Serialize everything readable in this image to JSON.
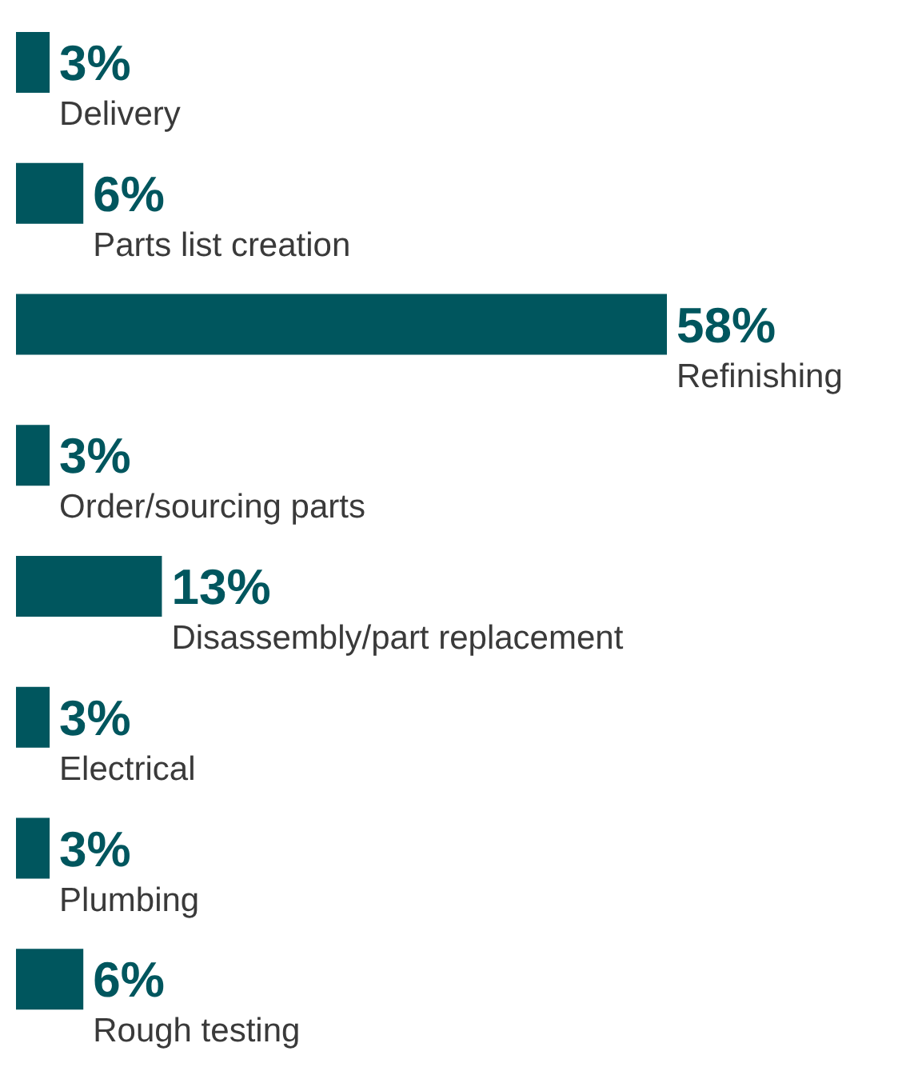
{
  "chart_data": {
    "type": "bar",
    "orientation": "horizontal",
    "categories": [
      "Delivery",
      "Parts list creation",
      "Refinishing",
      "Order/sourcing parts",
      "Disassembly/part replacement",
      "Electrical",
      "Plumbing",
      "Rough testing"
    ],
    "values": [
      3,
      6,
      58,
      3,
      13,
      3,
      3,
      6
    ],
    "value_labels": [
      "3%",
      "6%",
      "58%",
      "3%",
      "13%",
      "3%",
      "3%",
      "6%"
    ],
    "color": "#00565e"
  }
}
